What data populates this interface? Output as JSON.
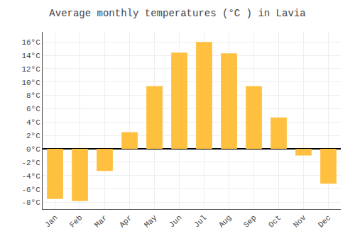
{
  "chart_data": {
    "type": "bar",
    "title": "Average monthly temperatures (°C ) in Lavia",
    "categories": [
      "Jan",
      "Feb",
      "Mar",
      "Apr",
      "May",
      "Jun",
      "Jul",
      "Aug",
      "Sep",
      "Oct",
      "Nov",
      "Dec"
    ],
    "values": [
      -7.5,
      -7.8,
      -3.3,
      2.5,
      9.4,
      14.4,
      16.0,
      14.3,
      9.4,
      4.7,
      -1.0,
      -5.2
    ],
    "color": "#FFC040",
    "ylim": [
      -9,
      17.5
    ],
    "yticks": [
      {
        "value": -8,
        "label": "-8°C"
      },
      {
        "value": -6,
        "label": "-6°C"
      },
      {
        "value": -4,
        "label": "-4°C"
      },
      {
        "value": -2,
        "label": "-2°C"
      },
      {
        "value": 0,
        "label": "0°C"
      },
      {
        "value": 2,
        "label": "2°C"
      },
      {
        "value": 4,
        "label": "4°C"
      },
      {
        "value": 6,
        "label": "6°C"
      },
      {
        "value": 8,
        "label": "8°C"
      },
      {
        "value": 10,
        "label": "10°C"
      },
      {
        "value": 12,
        "label": "12°C"
      },
      {
        "value": 14,
        "label": "14°C"
      },
      {
        "value": 16,
        "label": "16°C"
      }
    ],
    "grid": true
  }
}
